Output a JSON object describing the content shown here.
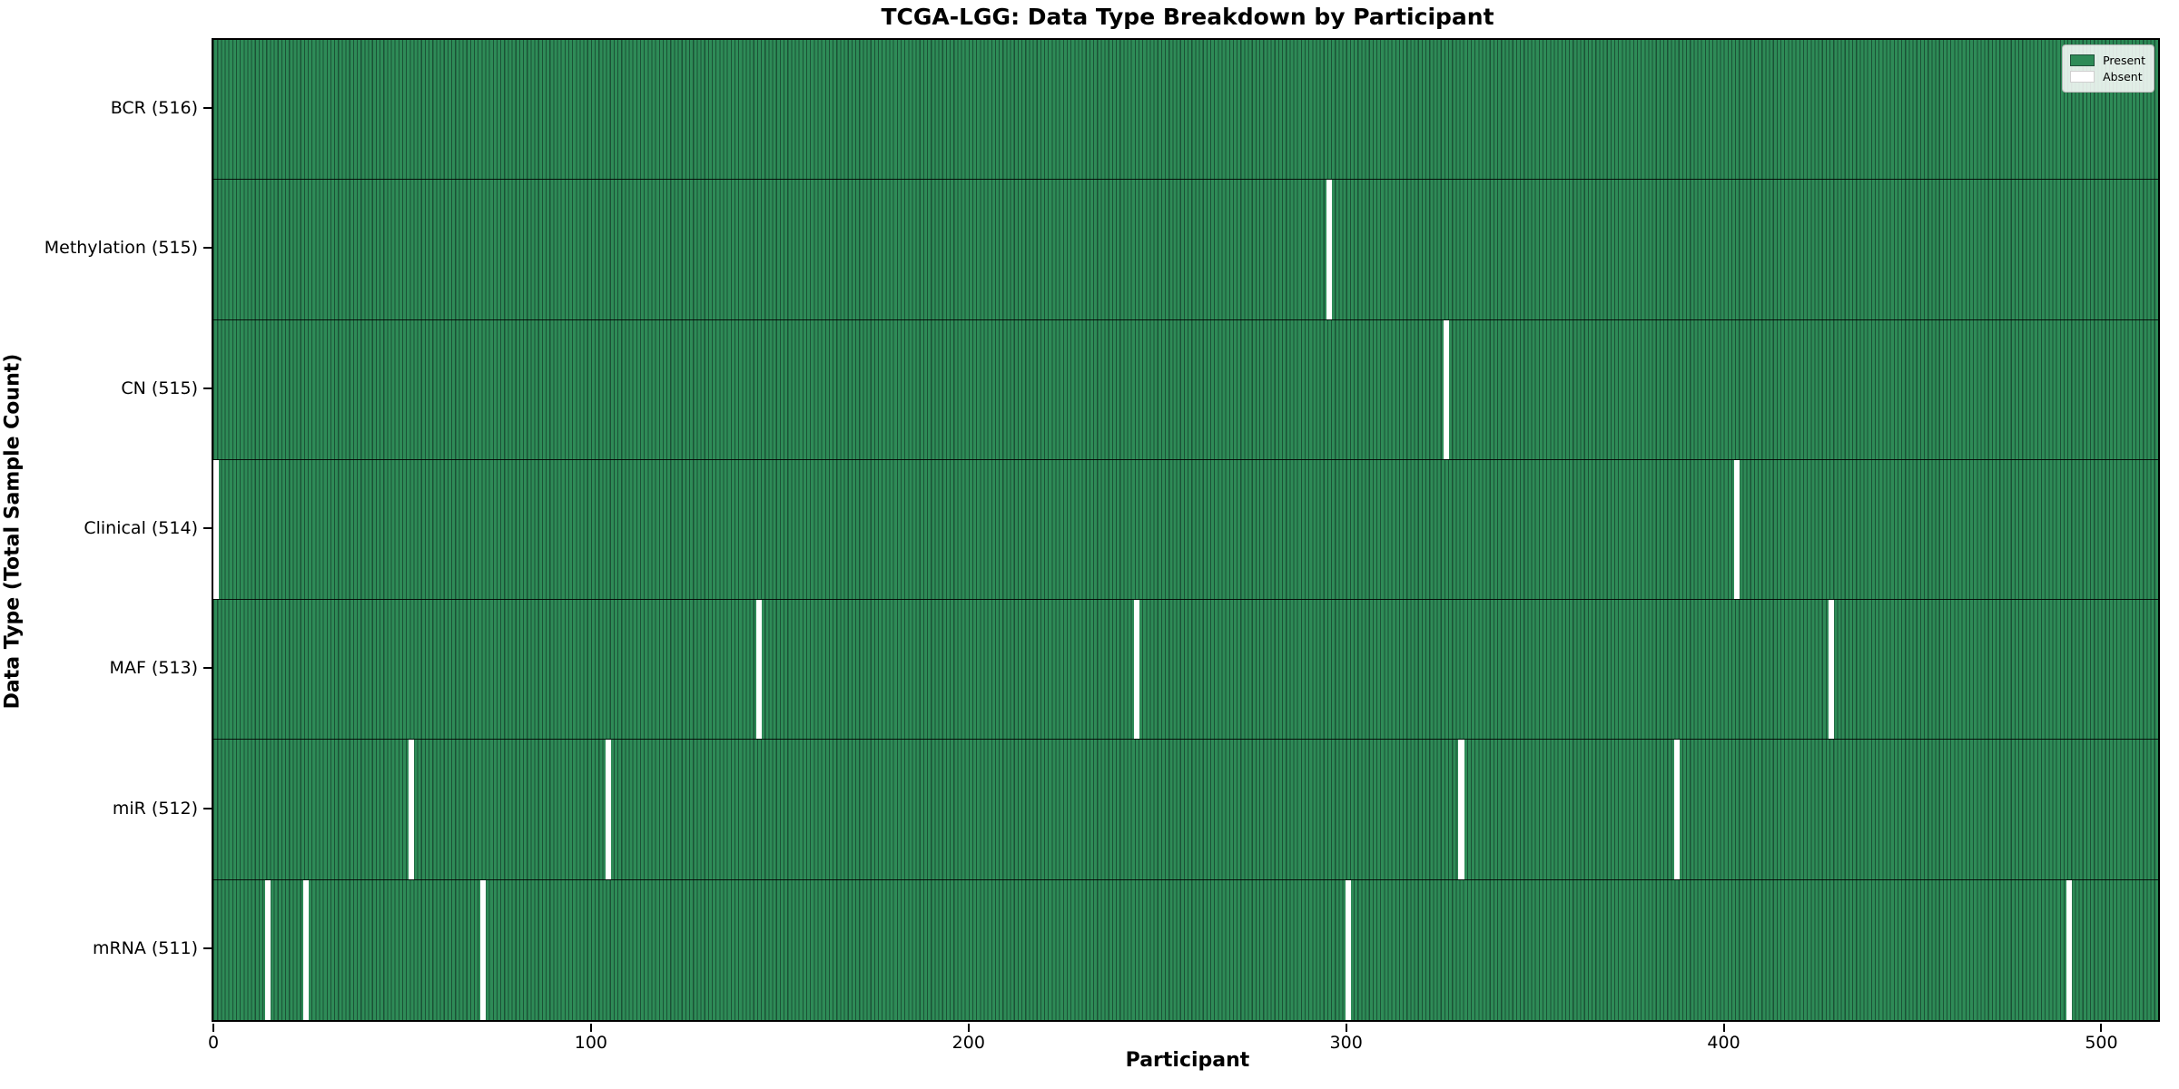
{
  "chart_data": {
    "type": "heatmap",
    "title": "TCGA-LGG: Data Type Breakdown by Participant",
    "xlabel": "Participant",
    "ylabel": "Data Type (Total Sample Count)",
    "x_ticks": [
      0,
      100,
      200,
      300,
      400,
      500
    ],
    "x_range": [
      0,
      516
    ],
    "n_participants": 516,
    "grid": false,
    "legend_position": "upper right",
    "legend": [
      {
        "label": "Present",
        "color": "#2e8b57"
      },
      {
        "label": "Absent",
        "color": "#ffffff"
      }
    ],
    "colors": {
      "present_fill": "#2e8b57",
      "cell_edge": "#1b5236",
      "absent_fill": "#ffffff"
    },
    "rows": [
      {
        "label": "BCR (516)",
        "data_type": "BCR",
        "total": 516,
        "absent_participants": []
      },
      {
        "label": "Methylation (515)",
        "data_type": "Methylation",
        "total": 515,
        "absent_participants": [
          295
        ]
      },
      {
        "label": "CN (515)",
        "data_type": "CN",
        "total": 515,
        "absent_participants": [
          326
        ]
      },
      {
        "label": "Clinical (514)",
        "data_type": "Clinical",
        "total": 514,
        "absent_participants": [
          0,
          403
        ]
      },
      {
        "label": "MAF (513)",
        "data_type": "MAF",
        "total": 513,
        "absent_participants": [
          144,
          244,
          428
        ]
      },
      {
        "label": "miR (512)",
        "data_type": "miR",
        "total": 512,
        "absent_participants": [
          52,
          104,
          330,
          387
        ]
      },
      {
        "label": "mRNA (511)",
        "data_type": "mRNA",
        "total": 511,
        "absent_participants": [
          14,
          24,
          71,
          300,
          491
        ]
      }
    ]
  }
}
